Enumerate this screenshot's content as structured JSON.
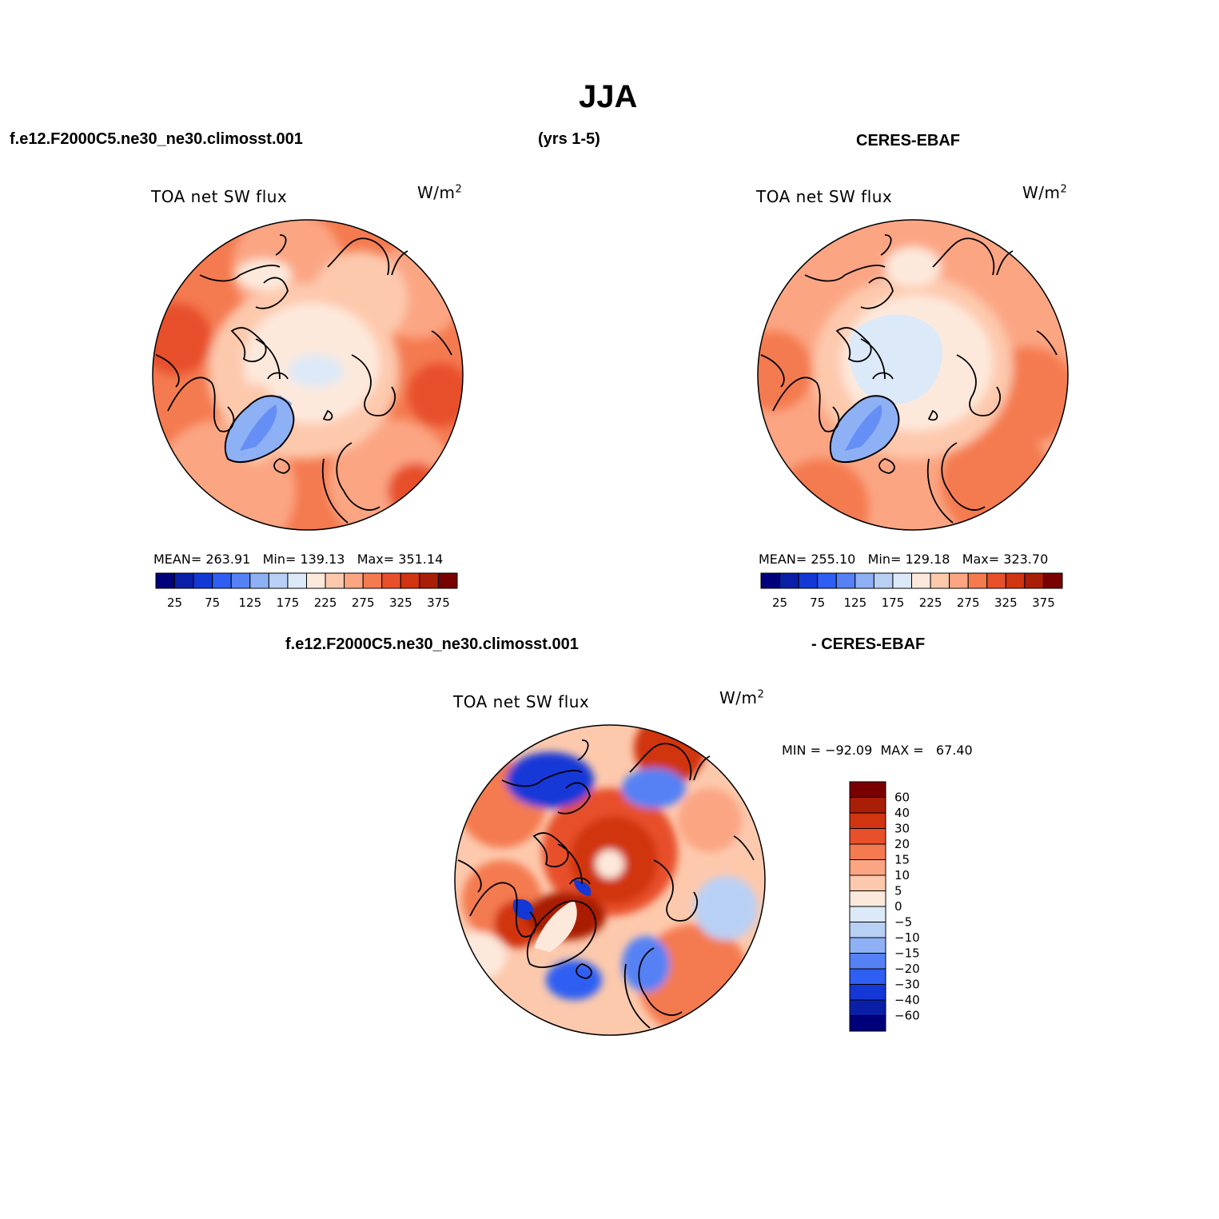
{
  "figure": {
    "title": "JJA",
    "case_name": "f.e12.F2000C5.ne30_ne30.climosst.001",
    "years": "(yrs 1-5)",
    "obs_name": "CERES-EBAF",
    "diff_case": "f.e12.F2000C5.ne30_ne30.climosst.001",
    "diff_obs": "- CERES-EBAF"
  },
  "panels": {
    "model": {
      "variable": "TOA net SW flux",
      "units_base": "W/m",
      "units_exp": "2",
      "stats": "MEAN= 263.91   Min= 139.13   Max= 351.14"
    },
    "obs": {
      "variable": "TOA net SW flux",
      "units_base": "W/m",
      "units_exp": "2",
      "stats": "MEAN= 255.10   Min= 129.18   Max= 323.70"
    },
    "diff": {
      "variable": "TOA net SW flux",
      "units_base": "W/m",
      "units_exp": "2",
      "stats": "MIN = −92.09  MAX =   67.40"
    }
  },
  "colorbars": {
    "abs": {
      "colors": [
        "#00007a",
        "#0a1fa6",
        "#1338d6",
        "#2e5ef2",
        "#5581f5",
        "#8eb0f5",
        "#b9d0f5",
        "#dce9f8",
        "#fde9dc",
        "#fdc9ad",
        "#fba583",
        "#f47a50",
        "#e7502b",
        "#d03410",
        "#a91e06",
        "#780000"
      ],
      "labels": [
        "25",
        "75",
        "125",
        "175",
        "225",
        "275",
        "325",
        "375"
      ]
    },
    "diff": {
      "colors": [
        "#7a0000",
        "#a91e06",
        "#d03410",
        "#e7502b",
        "#f47a50",
        "#fba583",
        "#fdc9ad",
        "#fde9dc",
        "#dce9f8",
        "#b9d0f5",
        "#8eb0f5",
        "#5581f5",
        "#2e5ef2",
        "#1338d6",
        "#0a1fa6",
        "#00007a"
      ],
      "labels": [
        "60",
        "40",
        "30",
        "20",
        "15",
        "10",
        "5",
        "0",
        "−5",
        "−10",
        "−15",
        "−20",
        "−30",
        "−40",
        "−60"
      ]
    }
  }
}
